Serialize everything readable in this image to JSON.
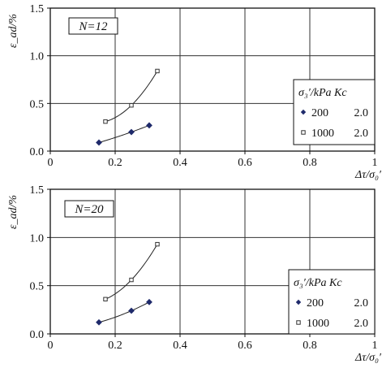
{
  "chart_data": [
    {
      "type": "scatter",
      "panel_label": "N=12",
      "xlabel": "Δτ/σ₀′",
      "ylabel": "ε_ad/%",
      "xlim": [
        0,
        1
      ],
      "ylim": [
        0,
        1.5
      ],
      "x_ticks": [
        "0",
        "0.2",
        "0.4",
        "0.6",
        "0.8",
        "1"
      ],
      "y_ticks": [
        "0.0",
        "0.5",
        "1.0",
        "1.5"
      ],
      "grid": true,
      "legend": {
        "placement": "right",
        "header": "σ₃′/kPa   Kc",
        "entries": [
          {
            "sigma": "200",
            "kc": "2.0",
            "marker": "diamond"
          },
          {
            "sigma": "1000",
            "kc": "2.0",
            "marker": "square"
          }
        ]
      },
      "series": [
        {
          "marker": "diamond",
          "x": [
            0.15,
            0.25,
            0.305
          ],
          "y": [
            0.09,
            0.2,
            0.27
          ],
          "fit": true
        },
        {
          "marker": "square",
          "x": [
            0.17,
            0.25,
            0.33
          ],
          "y": [
            0.31,
            0.48,
            0.84
          ],
          "fit": true
        }
      ]
    },
    {
      "type": "scatter",
      "panel_label": "N=20",
      "xlabel": "Δτ/σ₀′",
      "ylabel": "ε_ad/%",
      "xlim": [
        0,
        1
      ],
      "ylim": [
        0,
        1.5
      ],
      "x_ticks": [
        "0",
        "0.2",
        "0.4",
        "0.6",
        "0.8",
        "1"
      ],
      "y_ticks": [
        "0.0",
        "0.5",
        "1.0",
        "1.5"
      ],
      "grid": true,
      "legend": {
        "placement": "bottom-right",
        "header": "σ₃′/kPa   Kc",
        "entries": [
          {
            "sigma": "200",
            "kc": "2.0",
            "marker": "diamond"
          },
          {
            "sigma": "1000",
            "kc": "2.0",
            "marker": "square"
          }
        ]
      },
      "series": [
        {
          "marker": "diamond",
          "x": [
            0.15,
            0.25,
            0.305
          ],
          "y": [
            0.12,
            0.24,
            0.33
          ],
          "fit": true
        },
        {
          "marker": "square",
          "x": [
            0.17,
            0.25,
            0.33
          ],
          "y": [
            0.36,
            0.56,
            0.93
          ],
          "fit": true
        }
      ]
    }
  ]
}
